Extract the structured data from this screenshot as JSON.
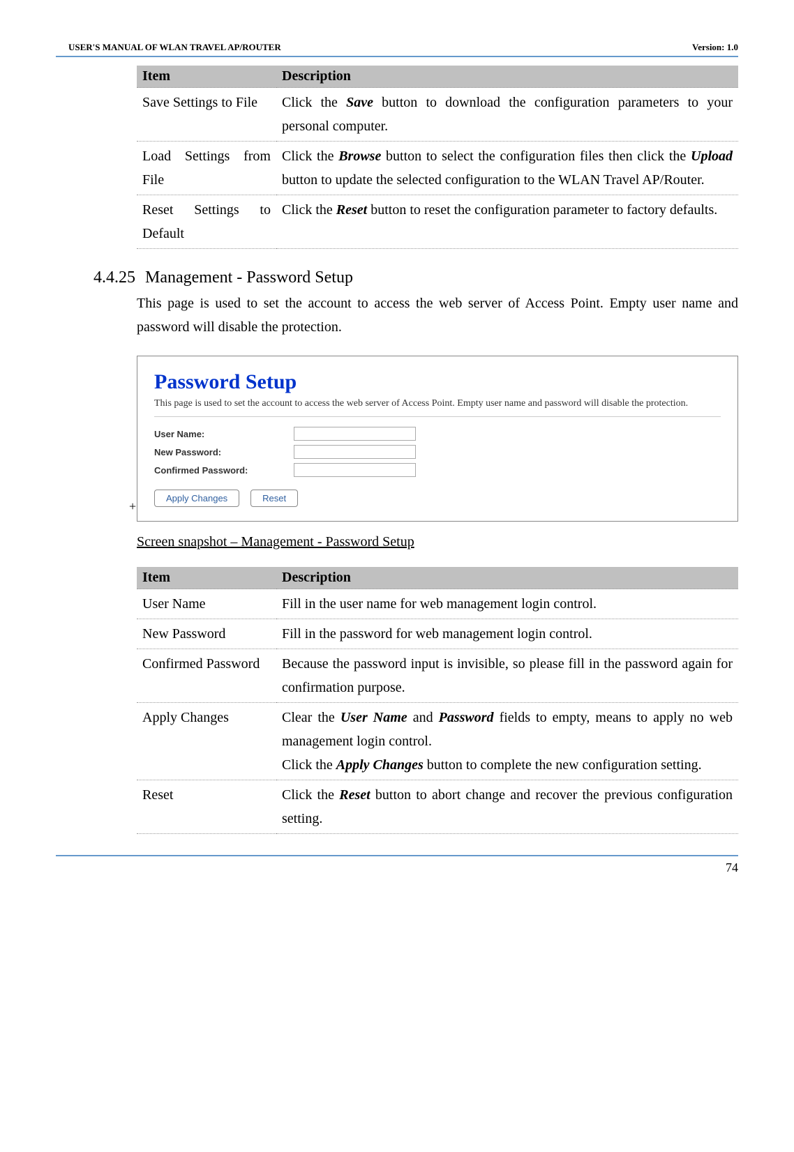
{
  "header": {
    "left": "USER'S MANUAL OF WLAN TRAVEL AP/ROUTER",
    "right": "Version: 1.0"
  },
  "table1": {
    "headItem": "Item",
    "headDesc": "Description",
    "row1": {
      "item": "Save Settings to File",
      "pre": "Click the ",
      "kw": "Save",
      "post": " button to download the configuration parameters to your personal computer."
    },
    "row2": {
      "item": "Load Settings from File",
      "pre": "Click the ",
      "kw1": "Browse",
      "mid": " button to select the configuration files then click the ",
      "kw2": "Upload",
      "post": " button to update the selected configuration to the WLAN Travel AP/Router."
    },
    "row3": {
      "item": "Reset Settings to Default",
      "pre": "Click the ",
      "kw": "Reset",
      "post": " button to reset the configuration parameter to factory defaults."
    }
  },
  "section": {
    "num": "4.4.25",
    "title": "Management - Password Setup",
    "body": "This page is used to set the account to access the web server of Access Point. Empty user name and password will disable the protection."
  },
  "screenshot": {
    "title": "Password Setup",
    "desc": "This page is used to set the account to access the web server of Access Point. Empty user name and password will disable the protection.",
    "userNameLabel": "User Name:",
    "newPasswordLabel": "New Password:",
    "confirmedPasswordLabel": "Confirmed Password:",
    "applyBtn": "Apply Changes",
    "resetBtn": "Reset"
  },
  "caption": "Screen snapshot – Management - Password Setup",
  "table2": {
    "headItem": "Item",
    "headDesc": "Description",
    "row1": {
      "item": "User Name",
      "desc": "Fill in the user name for web management login control."
    },
    "row2": {
      "item": "New Password",
      "desc": "Fill in the password for web management login control."
    },
    "row3": {
      "item": "Confirmed Password",
      "desc": "Because the password input is invisible, so please fill in the password again for confirmation purpose."
    },
    "row4": {
      "item": "Apply Changes",
      "pre": "Clear the ",
      "kw1": "User Name",
      "mid1": " and ",
      "kw2": "Password",
      "mid2": " fields to empty, means to apply no web management login control.",
      "line2pre": "Click the ",
      "kw3": "Apply Changes",
      "line2post": " button to complete the new configuration setting."
    },
    "row5": {
      "item": "Reset",
      "pre": "Click the ",
      "kw": "Reset",
      "post": " button to abort change and recover the previous configuration setting."
    }
  },
  "pageNumber": "74"
}
